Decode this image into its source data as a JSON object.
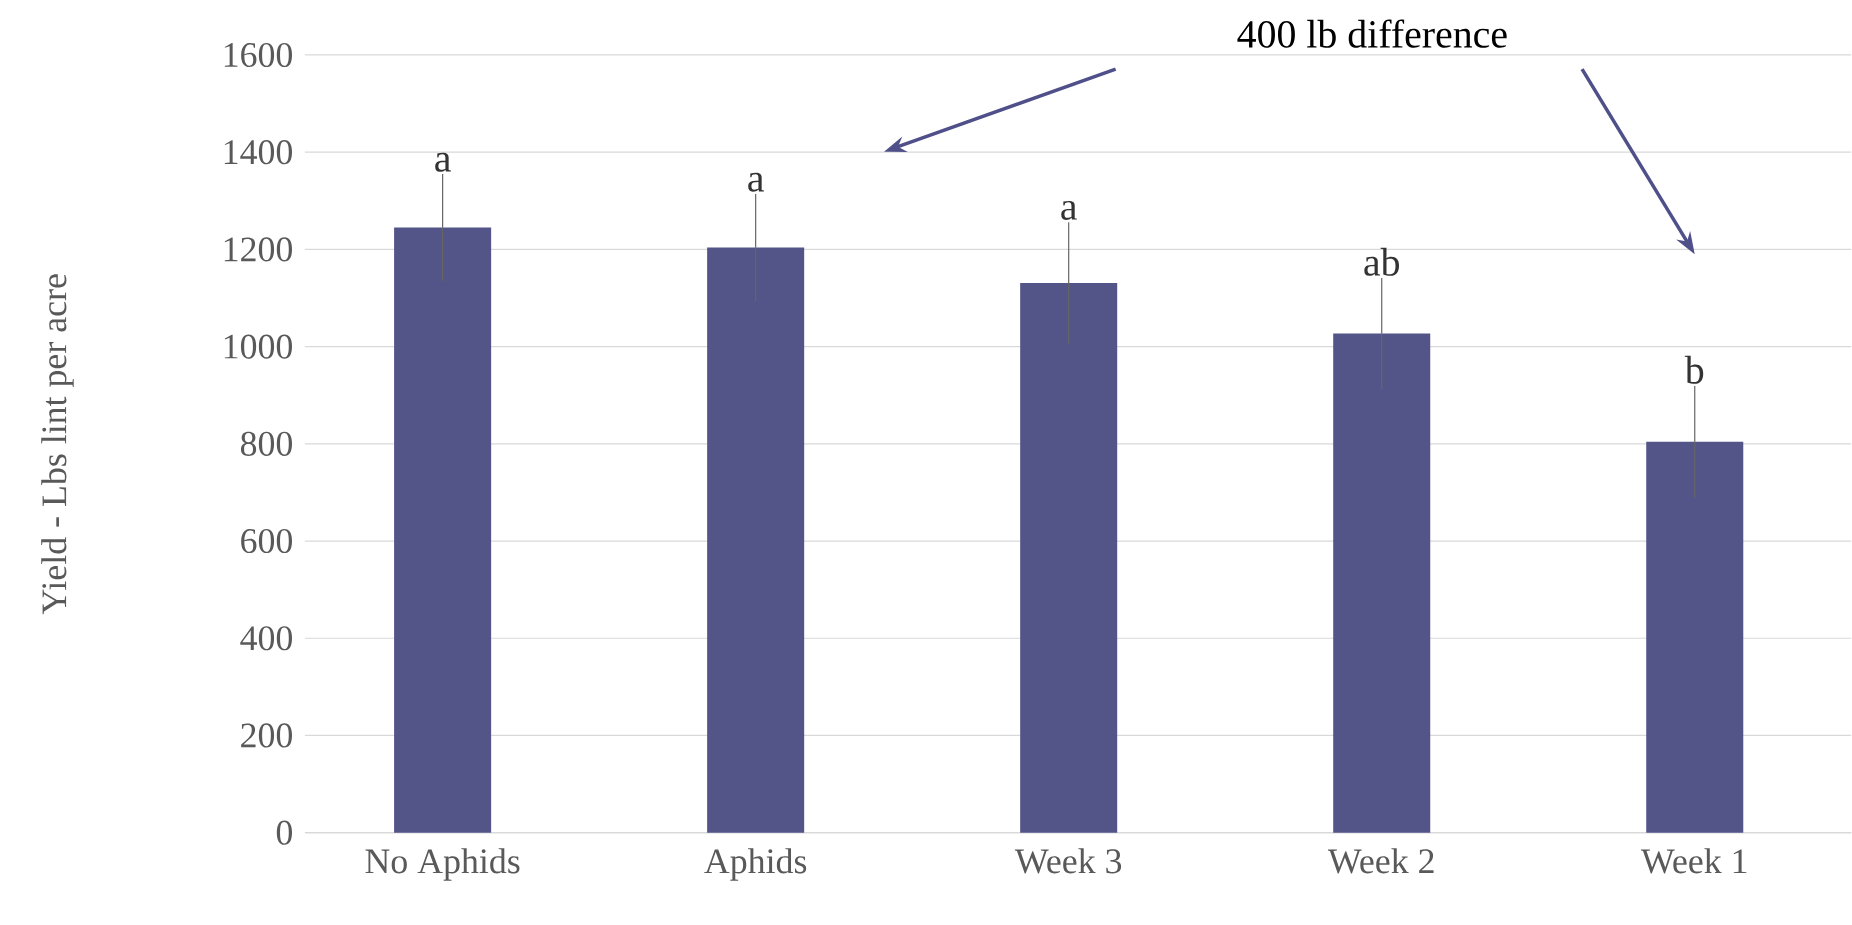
{
  "chart_data": {
    "type": "bar",
    "ylabel": "Yield - Lbs lint per acre",
    "categories": [
      "No Aphids",
      "Aphids",
      "Week 3",
      "Week 2",
      "Week 1"
    ],
    "values": [
      1245,
      1204,
      1131,
      1027,
      804
    ],
    "errors": [
      110,
      110,
      125,
      114,
      115
    ],
    "color": "#535488",
    "ylim": [
      0,
      1600
    ],
    "yticks": [
      0,
      200,
      400,
      600,
      800,
      1000,
      1200,
      1400,
      1600
    ],
    "grid": "y",
    "annotations": [
      {
        "text": "a",
        "x": "No Aphids",
        "y": 1355
      },
      {
        "text": "a",
        "x": "Aphids",
        "y": 1314
      },
      {
        "text": "a",
        "x": "Week 3",
        "y": 1256
      },
      {
        "text": "ab",
        "x": "Week 2",
        "y": 1141
      },
      {
        "text": "b",
        "x": "Week 1",
        "y": 919
      },
      "400 lb difference"
    ]
  }
}
